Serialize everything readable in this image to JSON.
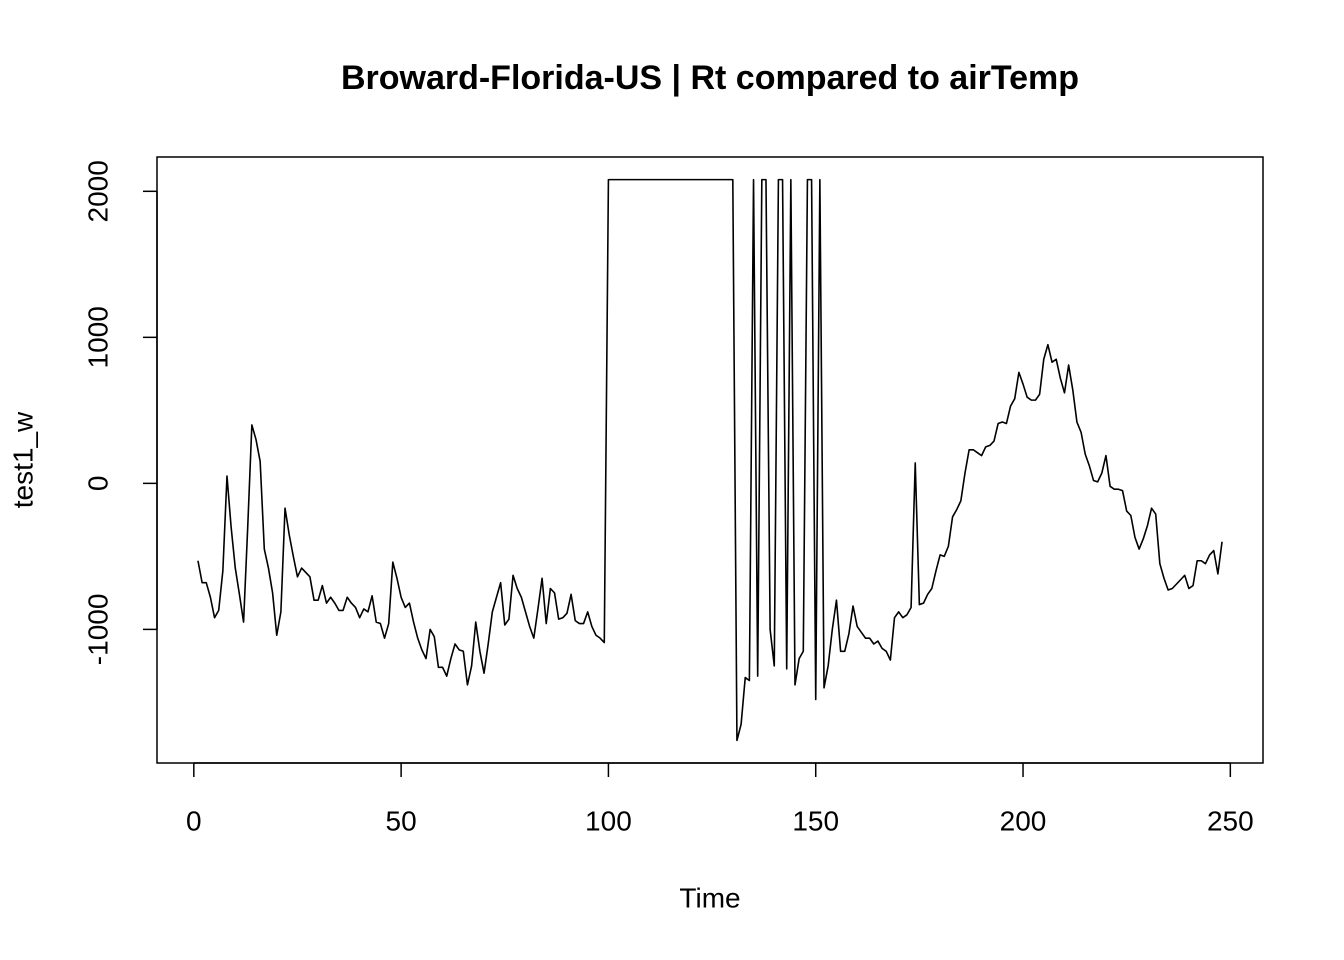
{
  "chart_data": {
    "type": "line",
    "title": "Broward-Florida-US | Rt compared to airTemp",
    "x_label": "Time",
    "y_label": "test1_w",
    "xlim": [
      -8.88,
      257.88
    ],
    "ylim": [
      -1915,
      2235
    ],
    "xticks": [
      0,
      50,
      100,
      150,
      200,
      250
    ],
    "yticks": [
      -1000,
      0,
      1000,
      2000
    ],
    "series": [
      {
        "name": "test1_w",
        "color": "#000000",
        "x": [
          1,
          2,
          3,
          4,
          5,
          6,
          7,
          8,
          9,
          10,
          11,
          12,
          13,
          14,
          15,
          16,
          17,
          18,
          19,
          20,
          21,
          22,
          23,
          24,
          25,
          26,
          27,
          28,
          29,
          30,
          31,
          32,
          33,
          34,
          35,
          36,
          37,
          38,
          39,
          40,
          41,
          42,
          43,
          44,
          45,
          46,
          47,
          48,
          49,
          50,
          51,
          52,
          53,
          54,
          55,
          56,
          57,
          58,
          59,
          60,
          61,
          62,
          63,
          64,
          65,
          66,
          67,
          68,
          69,
          70,
          71,
          72,
          73,
          74,
          75,
          76,
          77,
          78,
          79,
          80,
          81,
          82,
          83,
          84,
          85,
          86,
          87,
          88,
          89,
          90,
          91,
          92,
          93,
          94,
          95,
          96,
          97,
          98,
          99,
          100,
          101,
          102,
          103,
          104,
          105,
          106,
          107,
          108,
          109,
          110,
          111,
          112,
          113,
          114,
          115,
          116,
          117,
          118,
          119,
          120,
          121,
          122,
          123,
          124,
          125,
          126,
          127,
          128,
          129,
          130,
          131,
          132,
          133,
          134,
          135,
          136,
          137,
          138,
          139,
          140,
          141,
          142,
          143,
          144,
          145,
          146,
          147,
          148,
          149,
          150,
          151,
          152,
          153,
          154,
          155,
          156,
          157,
          158,
          159,
          160,
          161,
          162,
          163,
          164,
          165,
          166,
          167,
          168,
          169,
          170,
          171,
          172,
          173,
          174,
          175,
          176,
          177,
          178,
          179,
          180,
          181,
          182,
          183,
          184,
          185,
          186,
          187,
          188,
          189,
          190,
          191,
          192,
          193,
          194,
          195,
          196,
          197,
          198,
          199,
          200,
          201,
          202,
          203,
          204,
          205,
          206,
          207,
          208,
          209,
          210,
          211,
          212,
          213,
          214,
          215,
          216,
          217,
          218,
          219,
          220,
          221,
          222,
          223,
          224,
          225,
          226,
          227,
          228,
          229,
          230,
          231,
          232,
          233,
          234,
          235,
          236,
          237,
          238,
          239,
          240,
          241,
          242,
          243,
          244,
          245,
          246,
          247,
          248
        ],
        "values": [
          -530,
          -680,
          -680,
          -780,
          -920,
          -870,
          -600,
          50,
          -300,
          -580,
          -760,
          -950,
          -300,
          400,
          300,
          150,
          -450,
          -580,
          -750,
          -1040,
          -880,
          -170,
          -350,
          -500,
          -640,
          -580,
          -610,
          -640,
          -800,
          -800,
          -700,
          -820,
          -780,
          -820,
          -870,
          -870,
          -780,
          -820,
          -850,
          -920,
          -860,
          -880,
          -770,
          -950,
          -960,
          -1060,
          -960,
          -540,
          -650,
          -780,
          -850,
          -820,
          -950,
          -1060,
          -1140,
          -1200,
          -1000,
          -1050,
          -1260,
          -1260,
          -1320,
          -1200,
          -1100,
          -1140,
          -1150,
          -1380,
          -1250,
          -950,
          -1150,
          -1300,
          -1100,
          -880,
          -780,
          -680,
          -970,
          -930,
          -630,
          -720,
          -780,
          -880,
          -980,
          -1060,
          -860,
          -650,
          -960,
          -720,
          -750,
          -930,
          -920,
          -890,
          -760,
          -940,
          -960,
          -960,
          -880,
          -980,
          -1040,
          -1060,
          -1090,
          2080,
          2080,
          2080,
          2080,
          2080,
          2080,
          2080,
          2080,
          2080,
          2080,
          2080,
          2080,
          2080,
          2080,
          2080,
          2080,
          2080,
          2080,
          2080,
          2080,
          2080,
          2080,
          2080,
          2080,
          2080,
          2080,
          2080,
          2080,
          2080,
          2080,
          2080,
          -1760,
          -1650,
          -1330,
          -1350,
          2080,
          -1320,
          2080,
          2080,
          -1000,
          -1250,
          2080,
          2080,
          -1270,
          2080,
          -1380,
          -1200,
          -1150,
          2080,
          2080,
          -1480,
          2080,
          -1400,
          -1250,
          -1000,
          -800,
          -1150,
          -1150,
          -1030,
          -840,
          -980,
          -1020,
          -1060,
          -1060,
          -1100,
          -1080,
          -1130,
          -1150,
          -1210,
          -920,
          -880,
          -920,
          -900,
          -850,
          140,
          -830,
          -820,
          -760,
          -720,
          -600,
          -490,
          -500,
          -430,
          -230,
          -180,
          -120,
          70,
          230,
          230,
          210,
          190,
          250,
          260,
          290,
          410,
          420,
          410,
          530,
          580,
          760,
          680,
          590,
          570,
          570,
          610,
          850,
          950,
          830,
          850,
          720,
          620,
          810,
          640,
          420,
          350,
          200,
          120,
          20,
          10,
          70,
          190,
          -20,
          -40,
          -40,
          -50,
          -190,
          -220,
          -370,
          -450,
          -380,
          -290,
          -170,
          -210,
          -550,
          -650,
          -730,
          -720,
          -690,
          -660,
          -630,
          -720,
          -700,
          -530,
          -530,
          -550,
          -490,
          -460,
          -620,
          -400
        ]
      }
    ]
  }
}
